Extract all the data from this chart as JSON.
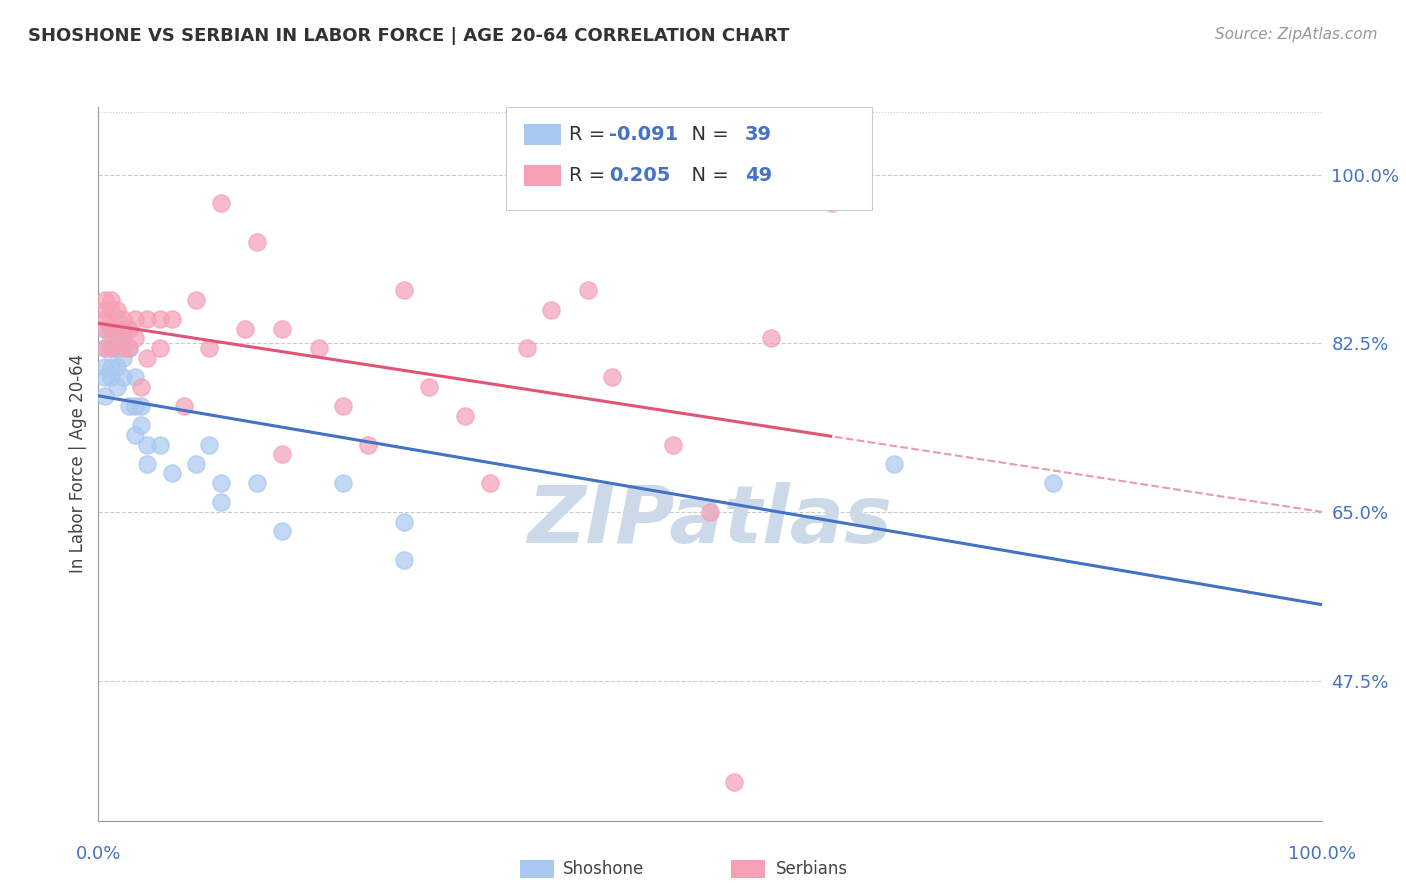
{
  "title": "SHOSHONE VS SERBIAN IN LABOR FORCE | AGE 20-64 CORRELATION CHART",
  "source": "Source: ZipAtlas.com",
  "ylabel": "In Labor Force | Age 20-64",
  "y_ticks": [
    0.475,
    0.65,
    0.825,
    1.0
  ],
  "y_tick_labels": [
    "47.5%",
    "65.0%",
    "82.5%",
    "100.0%"
  ],
  "x_range": [
    0.0,
    1.0
  ],
  "y_range": [
    0.33,
    1.07
  ],
  "shoshone_R": -0.091,
  "shoshone_N": 39,
  "serbian_R": 0.205,
  "serbian_N": 49,
  "shoshone_color": "#a8c8f0",
  "serbian_color": "#f5a0b5",
  "shoshone_line_color": "#4472c4",
  "serbian_line_color": "#e05575",
  "watermark_color": "#ccd9e8",
  "shoshone_x": [
    0.005,
    0.005,
    0.005,
    0.005,
    0.005,
    0.01,
    0.01,
    0.01,
    0.01,
    0.01,
    0.015,
    0.015,
    0.015,
    0.015,
    0.02,
    0.02,
    0.02,
    0.025,
    0.025,
    0.03,
    0.03,
    0.03,
    0.035,
    0.035,
    0.04,
    0.04,
    0.05,
    0.06,
    0.08,
    0.09,
    0.1,
    0.1,
    0.13,
    0.15,
    0.2,
    0.25,
    0.25,
    0.65,
    0.78
  ],
  "shoshone_y": [
    0.84,
    0.82,
    0.8,
    0.79,
    0.77,
    0.84,
    0.83,
    0.82,
    0.8,
    0.79,
    0.83,
    0.82,
    0.8,
    0.78,
    0.83,
    0.81,
    0.79,
    0.82,
    0.76,
    0.79,
    0.76,
    0.73,
    0.76,
    0.74,
    0.72,
    0.7,
    0.72,
    0.69,
    0.7,
    0.72,
    0.68,
    0.66,
    0.68,
    0.63,
    0.68,
    0.64,
    0.6,
    0.7,
    0.68
  ],
  "serbian_x": [
    0.005,
    0.005,
    0.005,
    0.005,
    0.005,
    0.01,
    0.01,
    0.01,
    0.01,
    0.015,
    0.015,
    0.015,
    0.02,
    0.02,
    0.02,
    0.025,
    0.025,
    0.03,
    0.03,
    0.035,
    0.04,
    0.04,
    0.05,
    0.05,
    0.06,
    0.07,
    0.08,
    0.09,
    0.1,
    0.12,
    0.13,
    0.15,
    0.15,
    0.18,
    0.2,
    0.22,
    0.25,
    0.27,
    0.3,
    0.32,
    0.35,
    0.37,
    0.4,
    0.42,
    0.47,
    0.5,
    0.52,
    0.55,
    0.6
  ],
  "serbian_y": [
    0.87,
    0.86,
    0.85,
    0.84,
    0.82,
    0.87,
    0.86,
    0.84,
    0.82,
    0.86,
    0.85,
    0.83,
    0.85,
    0.84,
    0.82,
    0.84,
    0.82,
    0.85,
    0.83,
    0.78,
    0.85,
    0.81,
    0.85,
    0.82,
    0.85,
    0.76,
    0.87,
    0.82,
    0.97,
    0.84,
    0.93,
    0.84,
    0.71,
    0.82,
    0.76,
    0.72,
    0.88,
    0.78,
    0.75,
    0.68,
    0.82,
    0.86,
    0.88,
    0.79,
    0.72,
    0.65,
    0.37,
    0.83,
    0.97
  ]
}
